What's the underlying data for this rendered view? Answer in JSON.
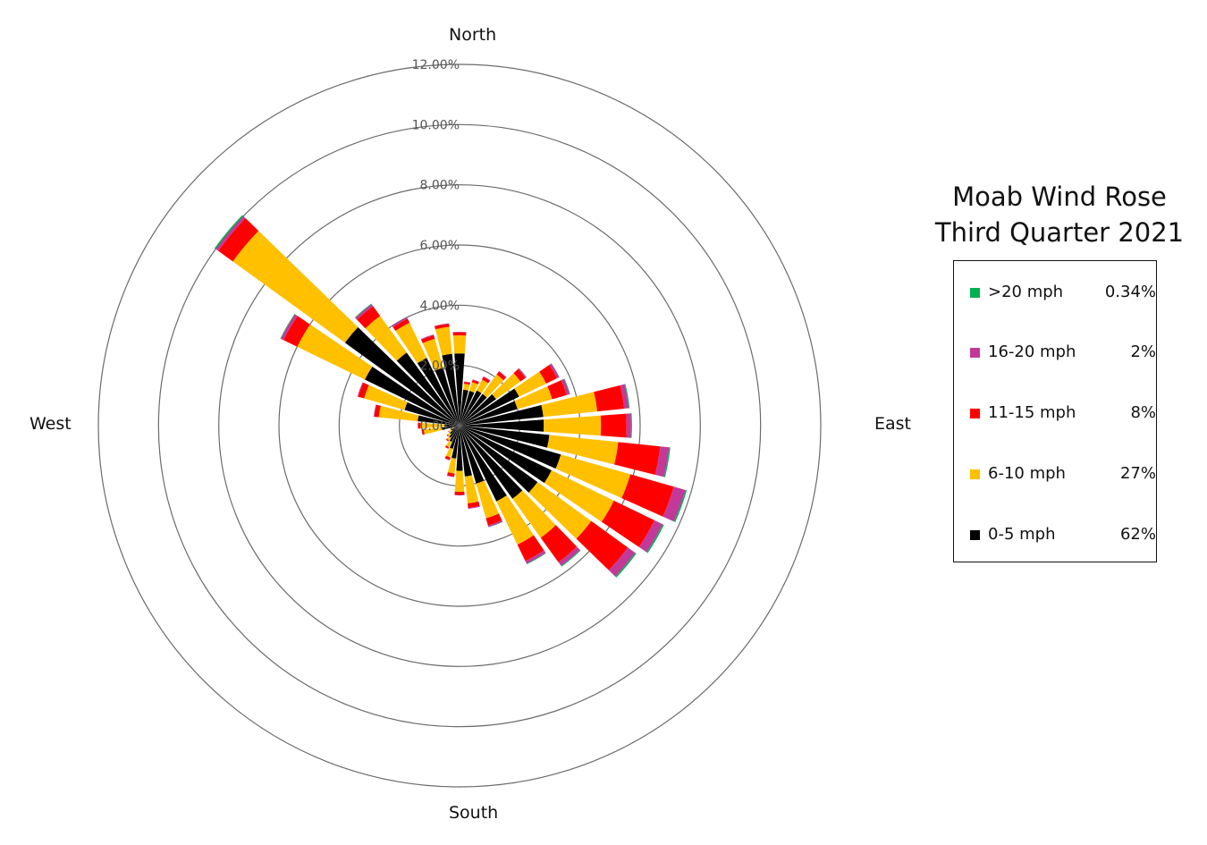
{
  "chart_data": {
    "type": "wind-rose",
    "title": [
      "Moab Wind Rose",
      "Third Quarter 2021"
    ],
    "directions": [
      "North",
      "East",
      "South",
      "West"
    ],
    "radial_ticks": [
      "0.00%",
      "2.00%",
      "4.00%",
      "6.00%",
      "8.00%",
      "10.00%",
      "12.00%"
    ],
    "rmax": 12,
    "legend": [
      {
        "name": ">20 mph",
        "pct": "0.34%",
        "color": "#00b050"
      },
      {
        "name": "16-20 mph",
        "pct": "2%",
        "color": "#c2399a"
      },
      {
        "name": "11-15 mph",
        "pct": "8%",
        "color": "#ff0000"
      },
      {
        "name": "6-10 mph",
        "pct": "27%",
        "color": "#ffc000"
      },
      {
        "name": "0-5 mph",
        "pct": "62%",
        "color": "#000000"
      }
    ],
    "speed_bins": [
      "0-5 mph",
      "6-10 mph",
      "11-15 mph",
      "16-20 mph",
      ">20 mph"
    ],
    "sector_width_deg": 10,
    "sectors": [
      {
        "dir": 0,
        "values": [
          2.4,
          0.6,
          0.1,
          0.02,
          0.0
        ]
      },
      {
        "dir": 10,
        "values": [
          1.2,
          0.2,
          0.06,
          0.02,
          0.0
        ]
      },
      {
        "dir": 20,
        "values": [
          1.2,
          0.3,
          0.08,
          0.02,
          0.0
        ]
      },
      {
        "dir": 30,
        "values": [
          1.3,
          0.4,
          0.1,
          0.02,
          0.0
        ]
      },
      {
        "dir": 40,
        "values": [
          1.3,
          0.8,
          0.12,
          0.02,
          0.0
        ]
      },
      {
        "dir": 50,
        "values": [
          1.5,
          1.0,
          0.2,
          0.04,
          0.01
        ]
      },
      {
        "dir": 60,
        "values": [
          2.2,
          1.0,
          0.4,
          0.08,
          0.01
        ]
      },
      {
        "dir": 70,
        "values": [
          2.0,
          1.2,
          0.5,
          0.1,
          0.02
        ]
      },
      {
        "dir": 80,
        "values": [
          2.8,
          1.8,
          0.9,
          0.15,
          0.03
        ]
      },
      {
        "dir": 90,
        "values": [
          2.8,
          1.9,
          0.85,
          0.15,
          0.03
        ]
      },
      {
        "dir": 100,
        "values": [
          3.0,
          2.3,
          1.4,
          0.3,
          0.04
        ]
      },
      {
        "dir": 110,
        "values": [
          3.5,
          2.4,
          1.5,
          0.4,
          0.05
        ]
      },
      {
        "dir": 120,
        "values": [
          3.4,
          2.3,
          1.5,
          0.3,
          0.05
        ]
      },
      {
        "dir": 130,
        "values": [
          3.2,
          2.2,
          1.5,
          0.3,
          0.05
        ]
      },
      {
        "dir": 140,
        "values": [
          3.0,
          1.6,
          1.0,
          0.15,
          0.03
        ]
      },
      {
        "dir": 150,
        "values": [
          2.8,
          1.6,
          0.6,
          0.1,
          0.02
        ]
      },
      {
        "dir": 160,
        "values": [
          2.0,
          1.2,
          0.25,
          0.05,
          0.01
        ]
      },
      {
        "dir": 170,
        "values": [
          1.7,
          0.9,
          0.15,
          0.03,
          0.0
        ]
      },
      {
        "dir": 180,
        "values": [
          1.5,
          0.7,
          0.1,
          0.02,
          0.0
        ]
      },
      {
        "dir": 190,
        "values": [
          1.1,
          0.5,
          0.1,
          0.02,
          0.0
        ]
      },
      {
        "dir": 200,
        "values": [
          0.8,
          0.3,
          0.08,
          0.02,
          0.0
        ]
      },
      {
        "dir": 210,
        "values": [
          0.6,
          0.2,
          0.05,
          0.01,
          0.0
        ]
      },
      {
        "dir": 220,
        "values": [
          0.5,
          0.1,
          0.04,
          0.01,
          0.0
        ]
      },
      {
        "dir": 230,
        "values": [
          0.4,
          0.1,
          0.03,
          0.0,
          0.0
        ]
      },
      {
        "dir": 240,
        "values": [
          0.3,
          0.1,
          0.02,
          0.0,
          0.0
        ]
      },
      {
        "dir": 250,
        "values": [
          0.2,
          0.1,
          0.02,
          0.0,
          0.0
        ]
      },
      {
        "dir": 260,
        "values": [
          0.6,
          0.6,
          0.06,
          0.01,
          0.0
        ]
      },
      {
        "dir": 270,
        "values": [
          0.5,
          0.8,
          0.08,
          0.01,
          0.0
        ]
      },
      {
        "dir": 280,
        "values": [
          1.4,
          1.3,
          0.15,
          0.02,
          0.0
        ]
      },
      {
        "dir": 290,
        "values": [
          1.9,
          1.4,
          0.2,
          0.03,
          0.0
        ]
      },
      {
        "dir": 300,
        "values": [
          3.5,
          2.5,
          0.5,
          0.1,
          0.02
        ]
      },
      {
        "dir": 310,
        "values": [
          4.7,
          4.6,
          0.6,
          0.1,
          0.05
        ]
      },
      {
        "dir": 320,
        "values": [
          3.0,
          1.5,
          0.4,
          0.08,
          0.02
        ]
      },
      {
        "dir": 330,
        "values": [
          2.5,
          1.3,
          0.15,
          0.05,
          0.0
        ]
      },
      {
        "dir": 340,
        "values": [
          2.0,
          1.0,
          0.12,
          0.03,
          0.0
        ]
      },
      {
        "dir": 350,
        "values": [
          2.4,
          0.9,
          0.1,
          0.02,
          0.0
        ]
      }
    ]
  }
}
